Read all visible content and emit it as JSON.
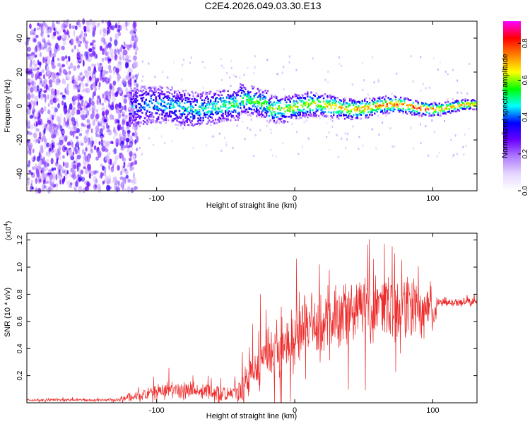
{
  "title": "C2E4.2026.049.03.30.E13",
  "colors": {
    "plot_border": "#000000",
    "snr_line": "#ee2b2b",
    "colormap": [
      "#ffffff",
      "#e6d6ff",
      "#b07cff",
      "#6a00ff",
      "#0000ff",
      "#00ffff",
      "#00ff00",
      "#ffff00",
      "#ff8000",
      "#ff0000",
      "#ff00ff"
    ]
  },
  "chart_data": [
    {
      "type": "heatmap",
      "name": "spectrogram",
      "xlabel": "Height of straight line (km)",
      "ylabel": "Frequency (Hz)",
      "xlim": [
        -194,
        132
      ],
      "ylim": [
        -50,
        50
      ],
      "x_ticks": [
        -100,
        0,
        100
      ],
      "y_ticks": [
        -40,
        -20,
        0,
        20,
        40
      ],
      "colorbar": {
        "label": "Normalized spectral amplitude",
        "range": [
          0.0,
          0.92
        ],
        "ticks": [
          0.0,
          0.2,
          0.4,
          0.6,
          0.8
        ]
      },
      "description_values": {
        "noise_region_x": [
          -194,
          -120
        ],
        "signal_center_hz": 0,
        "signal_halfwidth_hz_at_-110": 12,
        "signal_halfwidth_hz_at_100": 3
      }
    },
    {
      "type": "line",
      "name": "snr",
      "xlabel": "Height of straight line (km)",
      "ylabel": "SNR (10 * v/v)",
      "y_scale_label": "(x10",
      "y_scale_exp": "4",
      "y_scale_suffix": ")",
      "xlim": [
        -194,
        132
      ],
      "ylim": [
        0,
        1.25
      ],
      "x_ticks": [
        -100,
        0,
        100
      ],
      "y_ticks": [
        0.2,
        0.4,
        0.6,
        0.8,
        1.0,
        1.2
      ],
      "envelope": [
        {
          "x": -194,
          "y": 0.02
        },
        {
          "x": -130,
          "y": 0.02
        },
        {
          "x": -120,
          "y": 0.04
        },
        {
          "x": -105,
          "y": 0.07
        },
        {
          "x": -90,
          "y": 0.09
        },
        {
          "x": -75,
          "y": 0.09
        },
        {
          "x": -60,
          "y": 0.08
        },
        {
          "x": -50,
          "y": 0.06
        },
        {
          "x": -40,
          "y": 0.1
        },
        {
          "x": -30,
          "y": 0.25
        },
        {
          "x": -20,
          "y": 0.35
        },
        {
          "x": -10,
          "y": 0.42
        },
        {
          "x": 0,
          "y": 0.5
        },
        {
          "x": 10,
          "y": 0.56
        },
        {
          "x": 20,
          "y": 0.6
        },
        {
          "x": 30,
          "y": 0.63
        },
        {
          "x": 40,
          "y": 0.66
        },
        {
          "x": 50,
          "y": 0.68
        },
        {
          "x": 60,
          "y": 0.7
        },
        {
          "x": 70,
          "y": 0.7
        },
        {
          "x": 80,
          "y": 0.69
        },
        {
          "x": 90,
          "y": 0.69
        },
        {
          "x": 100,
          "y": 0.7
        },
        {
          "x": 104,
          "y": 0.74
        },
        {
          "x": 132,
          "y": 0.74
        }
      ],
      "noise_amplitude": [
        {
          "x": -194,
          "y": 0.01
        },
        {
          "x": -130,
          "y": 0.01
        },
        {
          "x": -115,
          "y": 0.05
        },
        {
          "x": -90,
          "y": 0.08
        },
        {
          "x": -60,
          "y": 0.07
        },
        {
          "x": -45,
          "y": 0.08
        },
        {
          "x": -30,
          "y": 0.22
        },
        {
          "x": -10,
          "y": 0.28
        },
        {
          "x": 20,
          "y": 0.3
        },
        {
          "x": 50,
          "y": 0.3
        },
        {
          "x": 70,
          "y": 0.32
        },
        {
          "x": 90,
          "y": 0.26
        },
        {
          "x": 101,
          "y": 0.24
        },
        {
          "x": 104,
          "y": 0.03
        },
        {
          "x": 132,
          "y": 0.03
        }
      ]
    }
  ]
}
